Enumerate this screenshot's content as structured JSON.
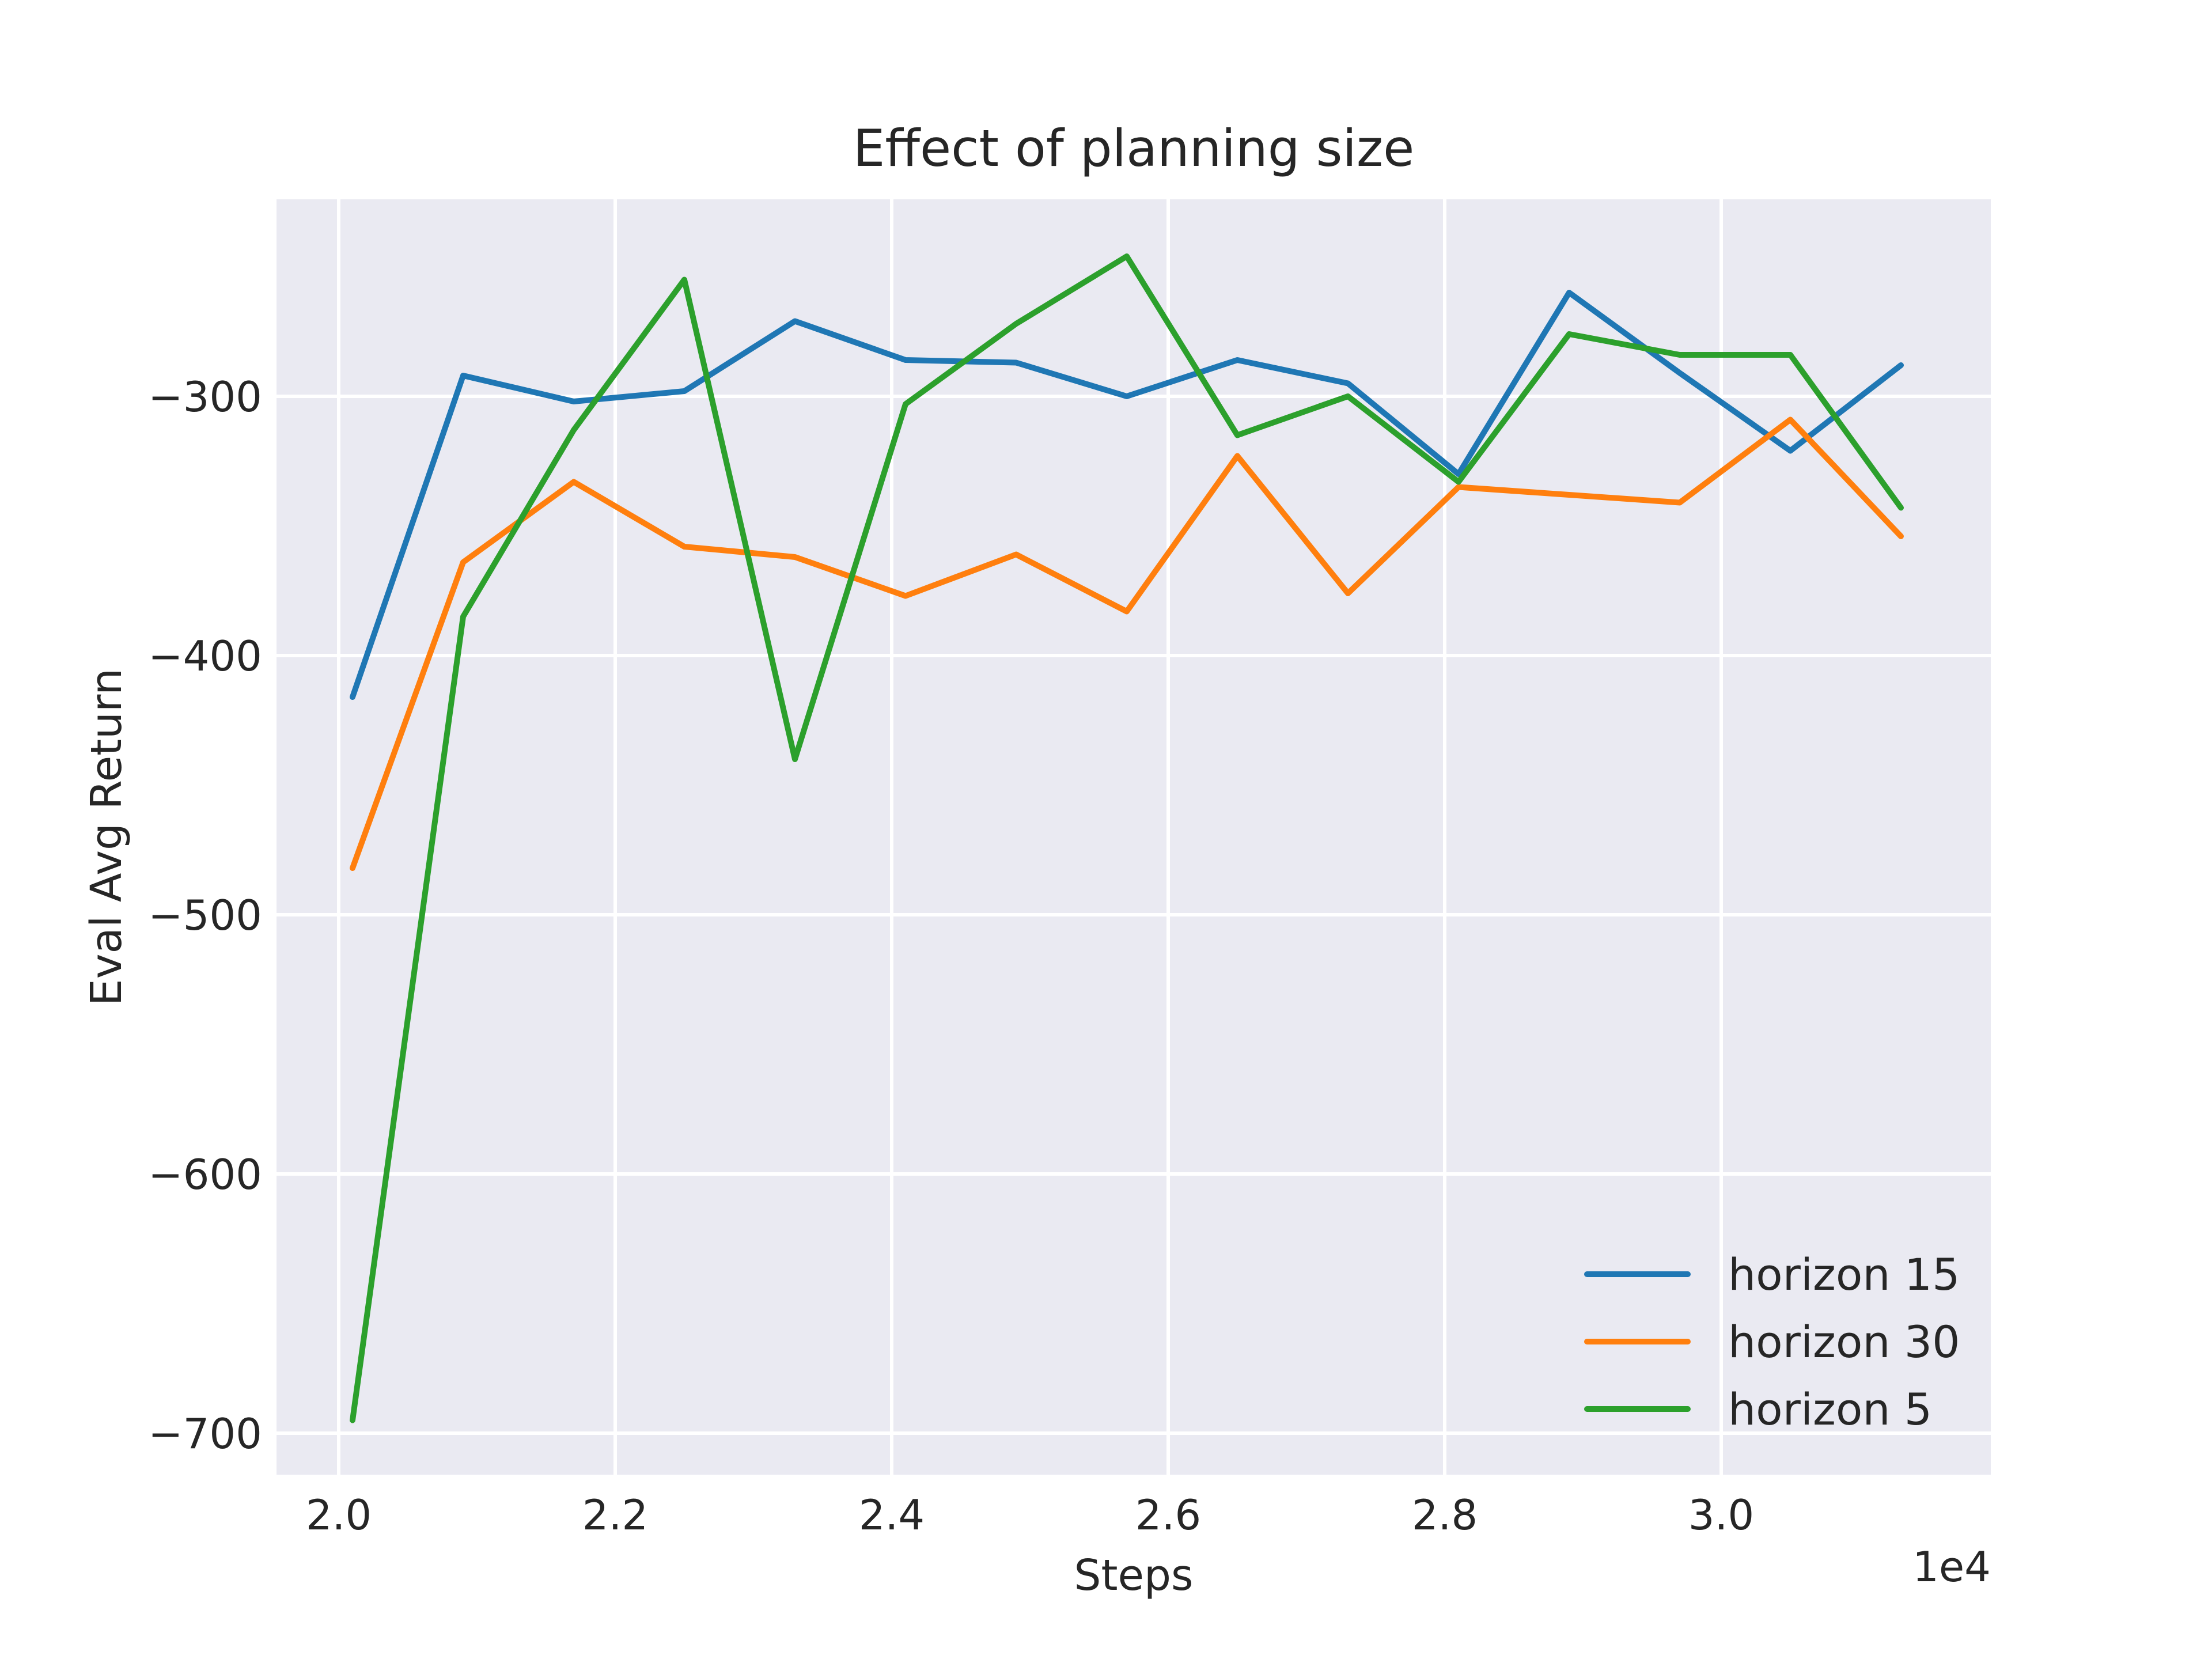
{
  "chart_data": {
    "type": "line",
    "title": "Effect of planning size",
    "xlabel": "Steps",
    "ylabel": "Eval Avg Return",
    "x_offset_label": "1e4",
    "xlim": [
      1.955,
      3.195
    ],
    "ylim": [
      -716,
      -224
    ],
    "xticks": [
      2.0,
      2.2,
      2.4,
      2.6,
      2.8,
      3.0
    ],
    "xtick_labels": [
      "2.0",
      "2.2",
      "2.4",
      "2.6",
      "2.8",
      "3.0"
    ],
    "yticks": [
      -300,
      -400,
      -500,
      -600,
      -700
    ],
    "ytick_labels": [
      "−300",
      "−400",
      "−500",
      "−600",
      "−700"
    ],
    "grid": true,
    "legend_position": "lower-right",
    "x": [
      2.01,
      2.09,
      2.17,
      2.25,
      2.33,
      2.41,
      2.49,
      2.57,
      2.65,
      2.73,
      2.81,
      2.89,
      2.97,
      3.05,
      3.13
    ],
    "series": [
      {
        "name": "horizon 15",
        "color": "#1f77b4",
        "values": [
          -416,
          -292,
          -302,
          -298,
          -271,
          -286,
          -287,
          -300,
          -286,
          -295,
          -330,
          -260,
          -291,
          -321,
          -288
        ]
      },
      {
        "name": "horizon 30",
        "color": "#ff7f0e",
        "values": [
          -482,
          -364,
          -333,
          -358,
          -362,
          -377,
          -361,
          -383,
          -323,
          -376,
          -335,
          -338,
          -341,
          -309,
          -354
        ]
      },
      {
        "name": "horizon 5",
        "color": "#2ca02c",
        "values": [
          -695,
          -385,
          -313,
          -255,
          -440,
          -303,
          -272,
          -246,
          -315,
          -300,
          -333,
          -276,
          -284,
          -284,
          -343
        ]
      }
    ]
  }
}
